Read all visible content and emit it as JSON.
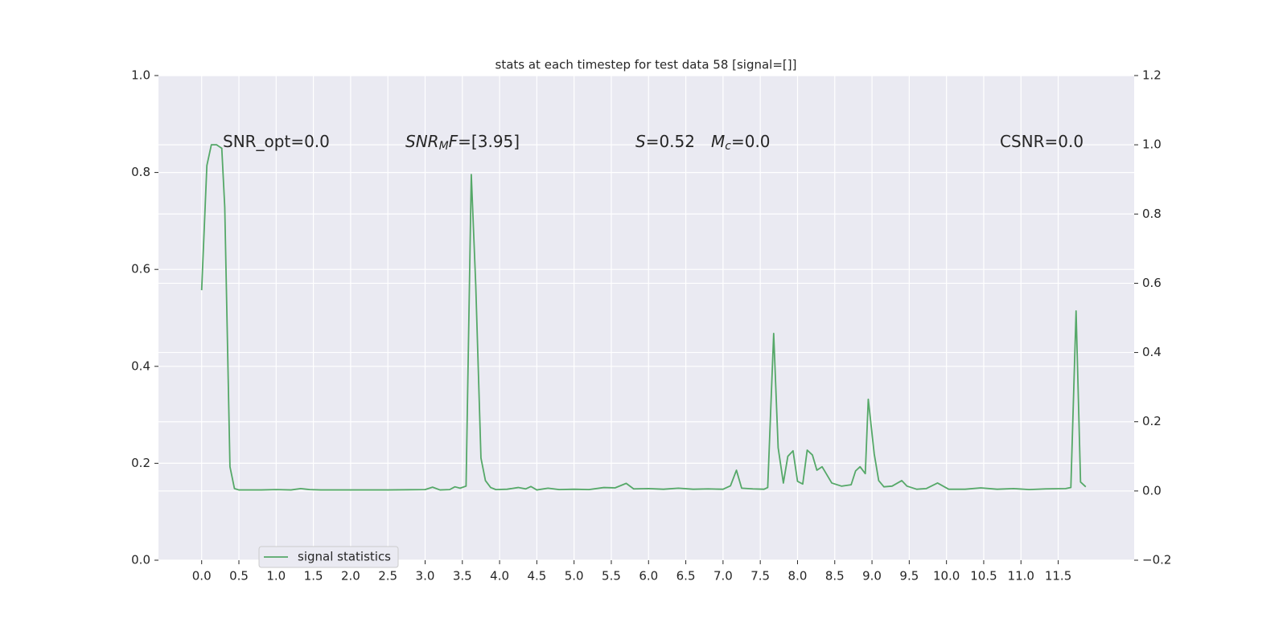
{
  "chart_data": {
    "type": "line",
    "title": "stats at each timestep for test data 58 [signal=[]]",
    "xlim": [
      -0.58,
      12.52
    ],
    "xticks": [
      {
        "value": 0,
        "label": "0.0"
      },
      {
        "value": 0.5,
        "label": "0.5"
      },
      {
        "value": 1,
        "label": "1.0"
      },
      {
        "value": 1.5,
        "label": "1.5"
      },
      {
        "value": 2,
        "label": "2.0"
      },
      {
        "value": 2.5,
        "label": "2.5"
      },
      {
        "value": 3,
        "label": "3.0"
      },
      {
        "value": 3.5,
        "label": "3.5"
      },
      {
        "value": 4,
        "label": "4.0"
      },
      {
        "value": 4.5,
        "label": "4.5"
      },
      {
        "value": 5,
        "label": "5.0"
      },
      {
        "value": 5.5,
        "label": "5.5"
      },
      {
        "value": 6,
        "label": "6.0"
      },
      {
        "value": 6.5,
        "label": "6.5"
      },
      {
        "value": 7,
        "label": "7.0"
      },
      {
        "value": 7.5,
        "label": "7.5"
      },
      {
        "value": 8,
        "label": "8.0"
      },
      {
        "value": 8.5,
        "label": "8.5"
      },
      {
        "value": 9,
        "label": "9.0"
      },
      {
        "value": 9.5,
        "label": "9.5"
      },
      {
        "value": 10,
        "label": "10.0"
      },
      {
        "value": 10.5,
        "label": "10.5"
      },
      {
        "value": 11,
        "label": "11.0"
      },
      {
        "value": 11.5,
        "label": "11.5"
      }
    ],
    "ylim": [
      0,
      1
    ],
    "yticks": [
      {
        "value": 0,
        "label": "0.0"
      },
      0.2,
      0.4,
      0.6,
      0.8,
      {
        "value": 1,
        "label": "1.0"
      }
    ],
    "y2lim": [
      -0.2,
      1.2
    ],
    "y2ticks": [
      {
        "value": -0.2,
        "label": "−0.2"
      },
      {
        "value": 0,
        "label": "0.0"
      },
      0.2,
      0.4,
      0.6,
      0.8,
      {
        "value": 1,
        "label": "1.0"
      },
      1.2
    ],
    "grid": true,
    "legend": "lower left",
    "x": [
      0,
      0.07,
      0.13,
      0.2,
      0.27,
      0.31,
      0.38,
      0.44,
      0.5,
      0.8,
      1.0,
      1.2,
      1.33,
      1.45,
      1.6,
      2.0,
      2.5,
      3.0,
      3.1,
      3.2,
      3.33,
      3.4,
      3.47,
      3.55,
      3.62,
      3.68,
      3.75,
      3.81,
      3.88,
      3.95,
      4.1,
      4.25,
      4.35,
      4.42,
      4.5,
      4.65,
      4.8,
      5.0,
      5.2,
      5.4,
      5.55,
      5.7,
      5.8,
      6.0,
      6.2,
      6.4,
      6.6,
      6.8,
      7.0,
      7.1,
      7.18,
      7.25,
      7.4,
      7.55,
      7.6,
      7.68,
      7.74,
      7.81,
      7.87,
      7.94,
      8.0,
      8.07,
      8.13,
      8.2,
      8.26,
      8.33,
      8.46,
      8.59,
      8.72,
      8.78,
      8.84,
      8.91,
      8.95,
      9.03,
      9.09,
      9.16,
      9.27,
      9.4,
      9.47,
      9.6,
      9.73,
      9.88,
      10.03,
      10.25,
      10.46,
      10.68,
      10.9,
      11.11,
      11.33,
      11.6,
      11.67,
      11.74,
      11.8,
      11.87
    ],
    "series": [
      {
        "name": "signal statistics",
        "color": "#55a868",
        "axis": "y2",
        "values": [
          0.58,
          0.94,
          1.0,
          1.0,
          0.99,
          0.82,
          0.07,
          0.007,
          0.003,
          0.003,
          0.004,
          0.003,
          0.007,
          0.004,
          0.003,
          0.003,
          0.003,
          0.004,
          0.011,
          0.003,
          0.004,
          0.012,
          0.008,
          0.014,
          0.914,
          0.594,
          0.095,
          0.03,
          0.01,
          0.004,
          0.005,
          0.01,
          0.006,
          0.013,
          0.003,
          0.008,
          0.004,
          0.005,
          0.004,
          0.01,
          0.009,
          0.022,
          0.006,
          0.007,
          0.005,
          0.008,
          0.005,
          0.006,
          0.005,
          0.015,
          0.06,
          0.008,
          0.006,
          0.005,
          0.01,
          0.455,
          0.125,
          0.023,
          0.1,
          0.116,
          0.028,
          0.02,
          0.118,
          0.104,
          0.06,
          0.07,
          0.023,
          0.014,
          0.018,
          0.058,
          0.07,
          0.05,
          0.265,
          0.107,
          0.03,
          0.012,
          0.014,
          0.03,
          0.014,
          0.005,
          0.007,
          0.023,
          0.005,
          0.005,
          0.009,
          0.005,
          0.007,
          0.004,
          0.006,
          0.007,
          0.01,
          0.52,
          0.026,
          0.012
        ]
      }
    ],
    "annotations": [
      [
        {
          "text": "SNR_opt=0.0"
        }
      ],
      [
        {
          "text": "SNR",
          "italic": true
        },
        {
          "text": "M",
          "italic": true,
          "sub": true
        },
        {
          "text": "F",
          "italic": true
        },
        {
          "text": "=[3.95]"
        }
      ],
      [
        {
          "text": "S",
          "italic": true
        },
        {
          "text": "=0.52"
        }
      ],
      [
        {
          "text": "M",
          "italic": true
        },
        {
          "text": "c",
          "italic": true,
          "sub": true
        },
        {
          "text": "=0.0"
        }
      ],
      [
        {
          "text": "CSNR=0.0"
        }
      ]
    ]
  }
}
